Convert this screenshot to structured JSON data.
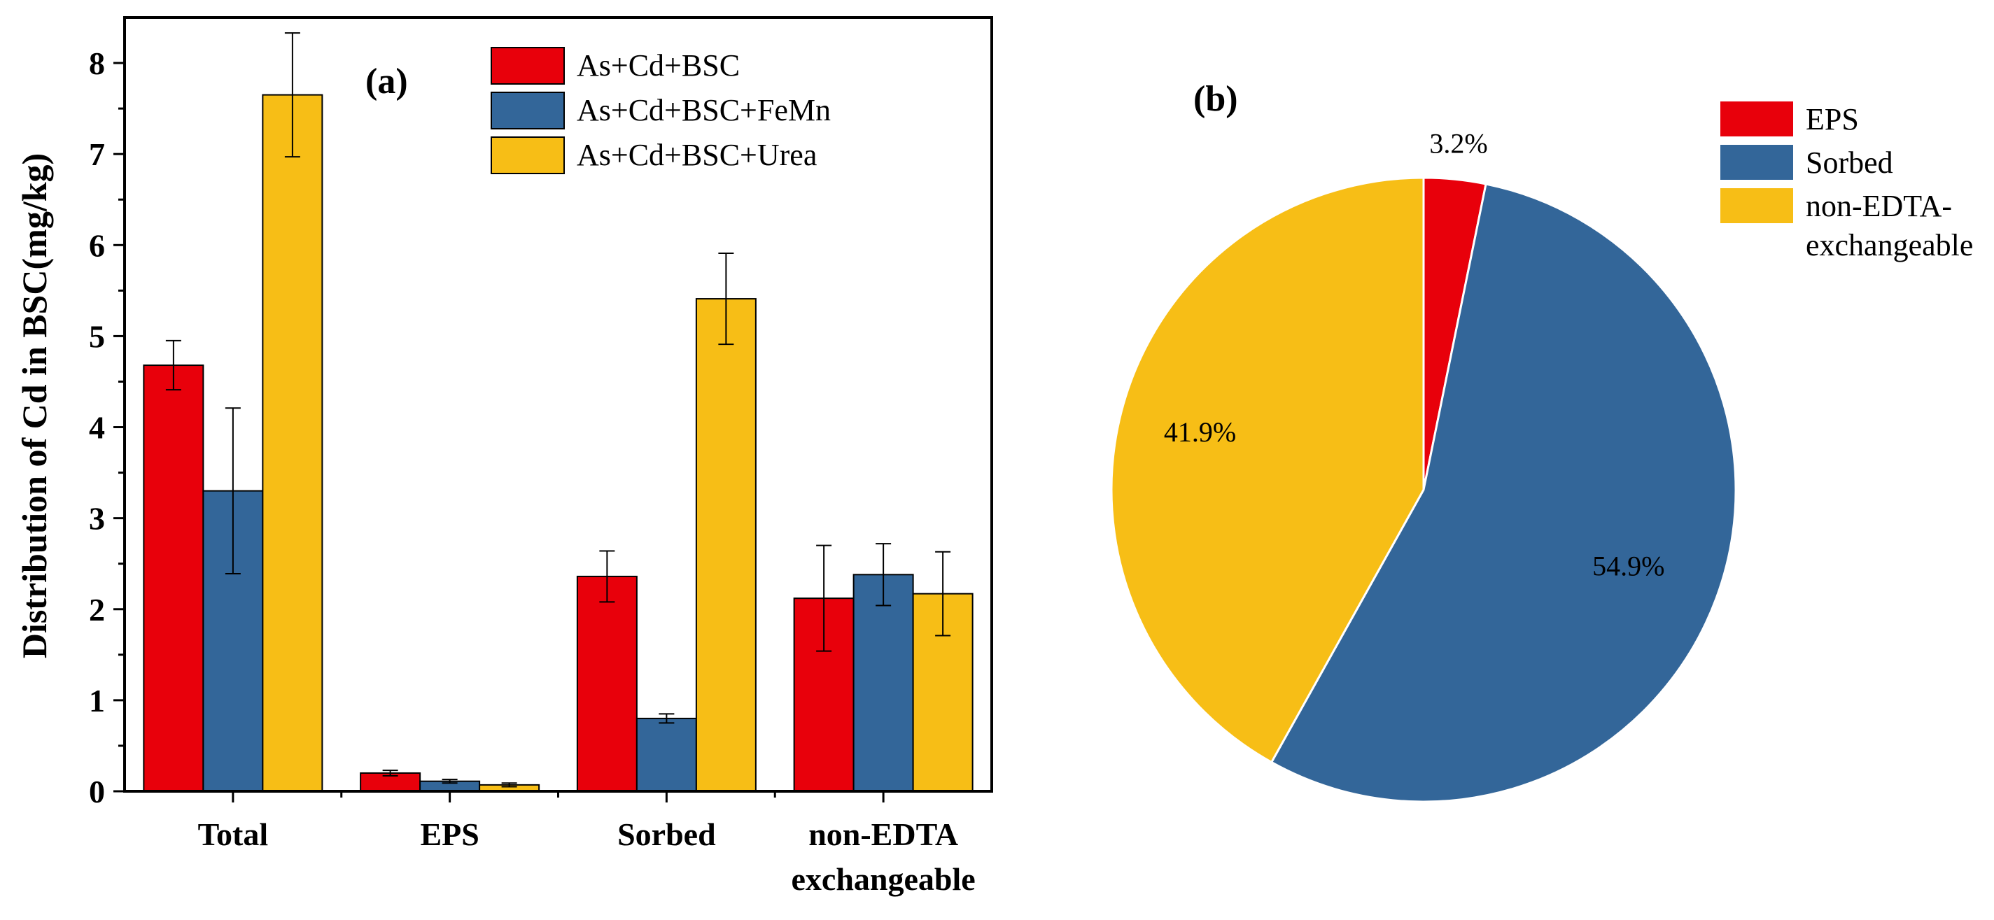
{
  "chart_data": [
    {
      "type": "bar",
      "panel_label": "(a)",
      "ylabel": "Distribution of Cd in BSC(mg/kg)",
      "ylim": [
        0,
        8.5
      ],
      "yticks": [
        "0",
        "1",
        "2",
        "3",
        "4",
        "5",
        "6",
        "7",
        "8"
      ],
      "categories": [
        "Total",
        "EPS",
        "Sorbed",
        "non-EDTA exchangeable"
      ],
      "category_label_lines": [
        [
          "Total"
        ],
        [
          "EPS"
        ],
        [
          "Sorbed"
        ],
        [
          "non-EDTA",
          "exchangeable"
        ]
      ],
      "legend_position": "top-right",
      "series": [
        {
          "name": "As+Cd+BSC",
          "color": "#e8000b",
          "values": [
            4.68,
            0.2,
            2.36,
            2.12
          ],
          "errors": [
            0.27,
            0.03,
            0.28,
            0.58
          ]
        },
        {
          "name": "As+Cd+BSC+FeMn",
          "color": "#336699",
          "values": [
            3.3,
            0.11,
            0.8,
            2.38
          ],
          "errors": [
            0.91,
            0.02,
            0.05,
            0.34
          ]
        },
        {
          "name": "As+Cd+BSC+Urea",
          "color": "#f7be16",
          "values": [
            7.65,
            0.07,
            5.41,
            2.17
          ],
          "errors": [
            0.68,
            0.02,
            0.5,
            0.46
          ]
        }
      ]
    },
    {
      "type": "pie",
      "panel_label": "(b)",
      "legend_position": "top-right",
      "slices": [
        {
          "name": "EPS",
          "legend_lines": [
            "EPS"
          ],
          "color": "#e8000b",
          "value": 3.2,
          "label": "3.2%"
        },
        {
          "name": "Sorbed",
          "legend_lines": [
            "Sorbed"
          ],
          "color": "#336699",
          "value": 54.9,
          "label": "54.9%"
        },
        {
          "name": "non-EDTA-exchangeable",
          "legend_lines": [
            "non-EDTA-",
            "exchangeable"
          ],
          "color": "#f7be16",
          "value": 41.9,
          "label": "41.9%"
        }
      ]
    }
  ]
}
